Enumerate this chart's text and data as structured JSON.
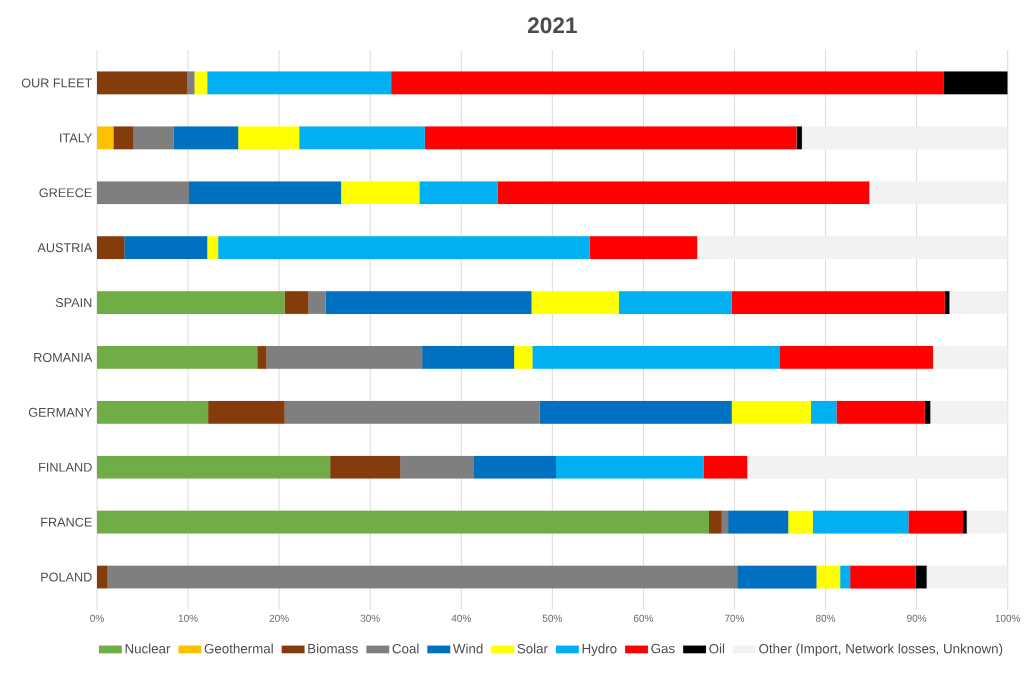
{
  "chart_data": {
    "type": "bar",
    "orientation": "horizontal",
    "stacked": true,
    "title": "2021",
    "categories": [
      "OUR FLEET",
      "ITALY",
      "GREECE",
      "AUSTRIA",
      "SPAIN",
      "ROMANIA",
      "GERMANY",
      "FINLAND",
      "FRANCE",
      "POLAND"
    ],
    "series": [
      {
        "name": "Nuclear",
        "color": "#70ad47",
        "values": [
          0,
          0,
          0,
          0,
          20.6,
          17.6,
          12.2,
          25.6,
          67.2,
          0
        ]
      },
      {
        "name": "Geothermal",
        "color": "#ffc000",
        "values": [
          0,
          1.8,
          0,
          0,
          0,
          0,
          0,
          0,
          0,
          0
        ]
      },
      {
        "name": "Biomass",
        "color": "#843c0c",
        "values": [
          9.9,
          2.2,
          0,
          3.0,
          2.6,
          1.0,
          8.4,
          7.7,
          1.4,
          1.1
        ]
      },
      {
        "name": "Coal",
        "color": "#7f7f7f",
        "values": [
          0.8,
          4.4,
          10.1,
          0,
          1.9,
          17.1,
          28.0,
          8.1,
          0.7,
          69.2
        ]
      },
      {
        "name": "Wind",
        "color": "#0070c0",
        "values": [
          0,
          7.1,
          16.7,
          9.1,
          22.6,
          10.1,
          21.1,
          9.0,
          6.6,
          8.7
        ]
      },
      {
        "name": "Solar",
        "color": "#ffff00",
        "values": [
          1.4,
          6.7,
          8.6,
          1.2,
          9.6,
          2.0,
          8.7,
          0,
          2.7,
          2.6
        ]
      },
      {
        "name": "Hydro",
        "color": "#00b0f0",
        "values": [
          20.2,
          13.8,
          8.6,
          40.8,
          12.4,
          27.2,
          2.8,
          16.2,
          10.5,
          1.1
        ]
      },
      {
        "name": "Gas",
        "color": "#ff0000",
        "values": [
          60.7,
          40.8,
          40.8,
          11.8,
          23.4,
          16.8,
          9.7,
          4.8,
          6.0,
          7.2
        ]
      },
      {
        "name": "Oil",
        "color": "#000000",
        "values": [
          7.0,
          0.6,
          0,
          0,
          0.5,
          0,
          0.6,
          0,
          0.4,
          1.2
        ]
      },
      {
        "name": "Other (Import, Network losses, Unknown)",
        "color": "#f2f2f2",
        "values": [
          0,
          22.6,
          15.2,
          34.1,
          6.4,
          8.2,
          8.5,
          28.6,
          4.5,
          8.9
        ]
      }
    ],
    "xlim": [
      0,
      100
    ],
    "xticks": [
      {
        "value": 0,
        "label": "0%"
      },
      {
        "value": 10,
        "label": "10%"
      },
      {
        "value": 20,
        "label": "20%"
      },
      {
        "value": 30,
        "label": "30%"
      },
      {
        "value": 40,
        "label": "40%"
      },
      {
        "value": 50,
        "label": "50%"
      },
      {
        "value": 60,
        "label": "60%"
      },
      {
        "value": 70,
        "label": "70%"
      },
      {
        "value": 80,
        "label": "80%"
      },
      {
        "value": 90,
        "label": "90%"
      },
      {
        "value": 100,
        "label": "100%"
      }
    ],
    "grid": "x",
    "legend": "bottom"
  }
}
